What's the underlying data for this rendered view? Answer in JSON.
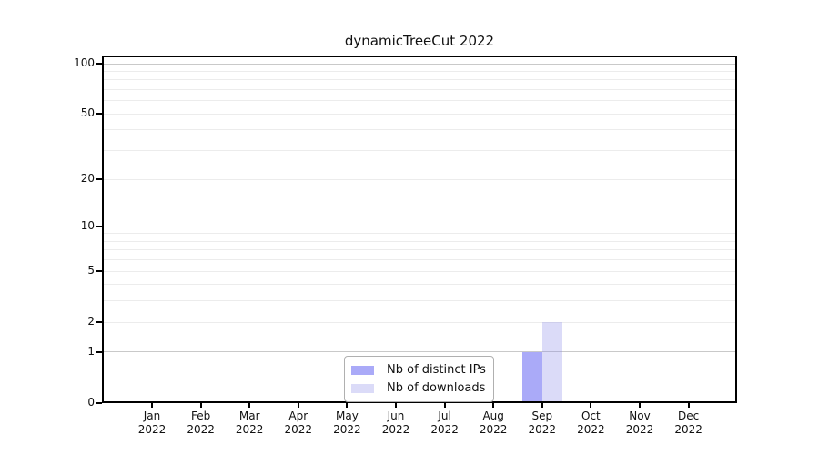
{
  "chart_data": {
    "type": "bar",
    "title": "dynamicTreeCut 2022",
    "yscale": "log1p",
    "grid": "horizontal",
    "legend_position": "inside-bottom-center",
    "month_labels": [
      "Jan",
      "Feb",
      "Mar",
      "Apr",
      "May",
      "Jun",
      "Jul",
      "Aug",
      "Sep",
      "Oct",
      "Nov",
      "Dec"
    ],
    "year_label": "2022",
    "categories": [
      "Jan 2022",
      "Feb 2022",
      "Mar 2022",
      "Apr 2022",
      "May 2022",
      "Jun 2022",
      "Jul 2022",
      "Aug 2022",
      "Sep 2022",
      "Oct 2022",
      "Nov 2022",
      "Dec 2022"
    ],
    "series": [
      {
        "name": "Nb of distinct IPs",
        "color": "#aaaaf8",
        "fill": "rgba(85,85,241,0.5)",
        "values": [
          0,
          0,
          0,
          0,
          0,
          0,
          0,
          0,
          1,
          0,
          0,
          0
        ]
      },
      {
        "name": "Nb of downloads",
        "color": "#dbdbf8",
        "fill": "rgba(135,135,232,0.3)",
        "values": [
          0,
          0,
          0,
          0,
          0,
          0,
          0,
          0,
          2,
          0,
          0,
          0
        ]
      }
    ],
    "yticks": [
      0,
      1,
      2,
      5,
      10,
      20,
      50,
      100
    ],
    "major_gridlines": [
      1,
      10,
      100
    ],
    "minor_gridlines": [
      2,
      3,
      4,
      5,
      6,
      7,
      8,
      9,
      20,
      30,
      40,
      50,
      60,
      70,
      80,
      90
    ],
    "ylim": [
      0,
      112
    ],
    "colors": {
      "axis": "#000000",
      "major_grid": "#c9c9c9",
      "minor_grid": "#ececec",
      "background": "#ffffff"
    }
  }
}
